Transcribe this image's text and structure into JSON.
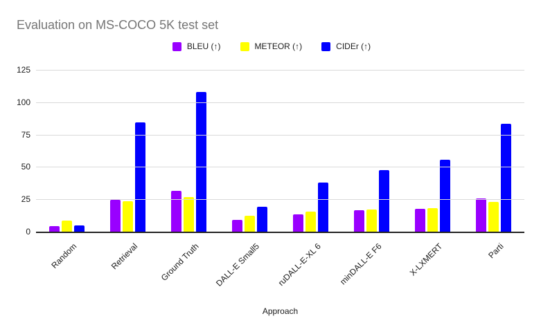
{
  "title": "Evaluation on MS-COCO 5K test set",
  "xaxis_title": "Approach",
  "colors": {
    "title_text": "#757575",
    "axis_text": "#1a1a1a",
    "gridline": "#d9d9d9",
    "axis_line": "#212121",
    "background": "#ffffff",
    "bleu": "#9900ff",
    "meteor": "#ffff00",
    "cider": "#0000ff"
  },
  "chart_data": {
    "type": "bar",
    "title": "Evaluation on MS-COCO 5K test set",
    "xlabel": "Approach",
    "ylabel": "",
    "ylim": [
      0,
      125
    ],
    "yticks": [
      0,
      25,
      50,
      75,
      100,
      125
    ],
    "grid": true,
    "legend_position": "top-center",
    "categories": [
      "Random",
      "Retrieval",
      "Ground Truth",
      "DALL-E Small5",
      "ruDALL-E-XL 6",
      "minDALL-E F6",
      "X-LXMERT",
      "Parti"
    ],
    "series": [
      {
        "name": "BLEU (↑)",
        "color": "#9900ff",
        "values": [
          4.4,
          24.6,
          31.6,
          9.0,
          13.5,
          16.4,
          17.9,
          25.9
        ]
      },
      {
        "name": "METEOR (↑)",
        "color": "#ffff00",
        "values": [
          8.7,
          23.4,
          26.8,
          12.3,
          15.3,
          17.0,
          18.4,
          23.2
        ]
      },
      {
        "name": "CIDEr (↑)",
        "color": "#0000ff",
        "values": [
          4.6,
          84.2,
          108.0,
          19.4,
          37.9,
          47.7,
          55.3,
          83.5
        ]
      }
    ]
  }
}
